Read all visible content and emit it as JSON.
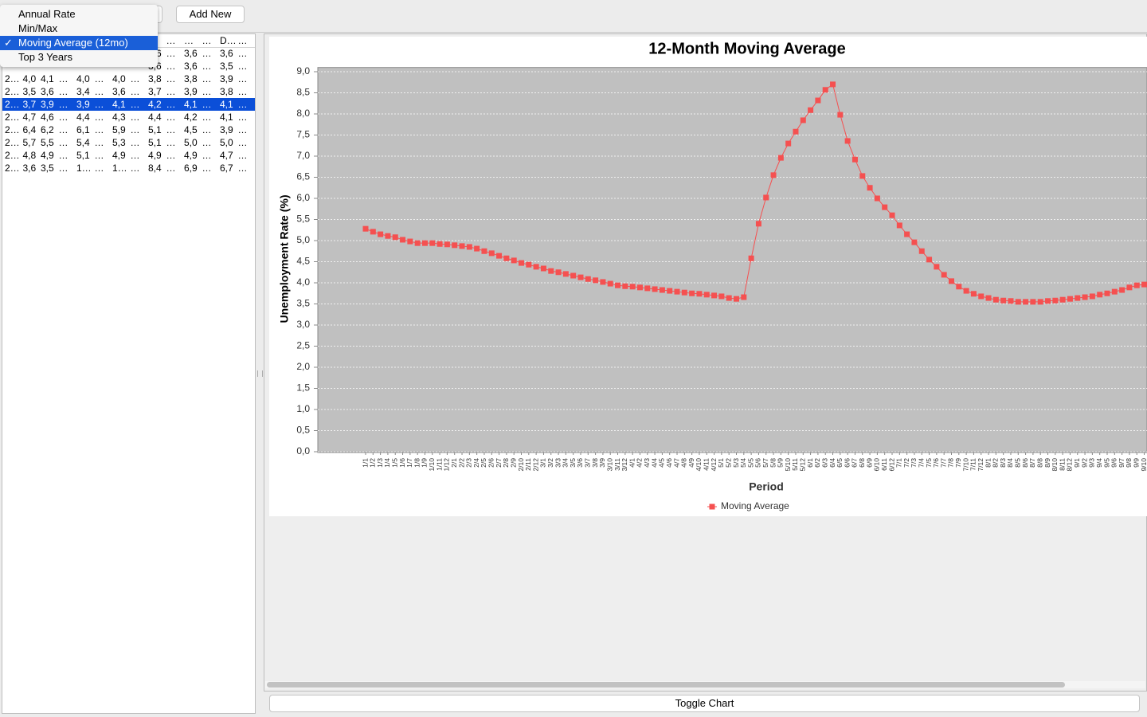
{
  "toolbar": {
    "menu_items": [
      {
        "label": "Annual Rate",
        "checked": false
      },
      {
        "label": "Min/Max",
        "checked": false
      },
      {
        "label": "Moving Average (12mo)",
        "checked": true
      },
      {
        "label": "Top 3 Years",
        "checked": false
      }
    ],
    "add_button": "Add New"
  },
  "table": {
    "header": [
      "…",
      "…",
      "…",
      "D…",
      "…"
    ],
    "partial_rows": [
      [
        "3,6",
        "…",
        "3,6",
        "…",
        "3,6",
        "…"
      ],
      [
        "3,6",
        "…",
        "3,6",
        "…",
        "3,5",
        "…"
      ]
    ],
    "rows": [
      {
        "cells": [
          "2…",
          "4,0",
          "4,1",
          "…",
          "4,0",
          "…",
          "4,0",
          "…",
          "3,8",
          "…",
          "3,8",
          "…",
          "3,9",
          "…"
        ],
        "selected": false
      },
      {
        "cells": [
          "2…",
          "3,5",
          "3,6",
          "…",
          "3,4",
          "…",
          "3,6",
          "…",
          "3,7",
          "…",
          "3,9",
          "…",
          "3,8",
          "…"
        ],
        "selected": false
      },
      {
        "cells": [
          "2…",
          "3,7",
          "3,9",
          "…",
          "3,9",
          "…",
          "4,1",
          "…",
          "4,2",
          "…",
          "4,1",
          "…",
          "4,1",
          "…"
        ],
        "selected": true
      },
      {
        "cells": [
          "2…",
          "4,7",
          "4,6",
          "…",
          "4,4",
          "…",
          "4,3",
          "…",
          "4,4",
          "…",
          "4,2",
          "…",
          "4,1",
          "…"
        ],
        "selected": false
      },
      {
        "cells": [
          "2…",
          "6,4",
          "6,2",
          "…",
          "6,1",
          "…",
          "5,9",
          "…",
          "5,1",
          "…",
          "4,5",
          "…",
          "3,9",
          "…"
        ],
        "selected": false
      },
      {
        "cells": [
          "2…",
          "5,7",
          "5,5",
          "…",
          "5,4",
          "…",
          "5,3",
          "…",
          "5,1",
          "…",
          "5,0",
          "…",
          "5,0",
          "…"
        ],
        "selected": false
      },
      {
        "cells": [
          "2…",
          "4,8",
          "4,9",
          "…",
          "5,1",
          "…",
          "4,9",
          "…",
          "4,9",
          "…",
          "4,9",
          "…",
          "4,7",
          "…"
        ],
        "selected": false
      },
      {
        "cells": [
          "2…",
          "3,6",
          "3,5",
          "…",
          "1…",
          "…",
          "1…",
          "…",
          "8,4",
          "…",
          "6,9",
          "…",
          "6,7",
          "…"
        ],
        "selected": false
      }
    ]
  },
  "chart_data": {
    "type": "line",
    "title": "12-Month Moving Average",
    "x_label": "Period",
    "y_label": "Unemployment Rate (%)",
    "categories": [
      "1/1",
      "1/2",
      "1/3",
      "1/4",
      "1/5",
      "1/6",
      "1/7",
      "1/8",
      "1/9",
      "1/10",
      "1/11",
      "1/12",
      "2/1",
      "2/2",
      "2/3",
      "2/4",
      "2/5",
      "2/6",
      "2/7",
      "2/8",
      "2/9",
      "2/10",
      "2/11",
      "2/12",
      "3/1",
      "3/2",
      "3/3",
      "3/4",
      "3/5",
      "3/6",
      "3/7",
      "3/8",
      "3/9",
      "3/10",
      "3/11",
      "3/12",
      "4/1",
      "4/2",
      "4/3",
      "4/4",
      "4/5",
      "4/6",
      "4/7",
      "4/8",
      "4/9",
      "4/10",
      "4/11",
      "4/12",
      "5/1",
      "5/2",
      "5/3",
      "5/4",
      "5/5",
      "5/6",
      "5/7",
      "5/8",
      "5/9",
      "5/10",
      "5/11",
      "5/12",
      "6/1",
      "6/2",
      "6/3",
      "6/4",
      "6/5",
      "6/6",
      "6/7",
      "6/8",
      "6/9",
      "6/10",
      "6/11",
      "6/12",
      "7/1",
      "7/2",
      "7/3",
      "7/4",
      "7/5",
      "7/6",
      "7/7",
      "7/8",
      "7/9",
      "7/10",
      "7/11",
      "7/12",
      "8/1",
      "8/2",
      "8/3",
      "8/4",
      "8/5",
      "8/6",
      "8/7",
      "8/8",
      "8/9",
      "8/10",
      "8/11",
      "8/12",
      "9/1",
      "9/2",
      "9/3",
      "9/4",
      "9/5",
      "9/6",
      "9/7",
      "9/8",
      "9/9",
      "9/10"
    ],
    "series": [
      {
        "name": "Moving Average",
        "color": "#f55050",
        "values": [
          5.28,
          5.21,
          5.15,
          5.11,
          5.08,
          5.02,
          4.98,
          4.94,
          4.94,
          4.94,
          4.92,
          4.91,
          4.89,
          4.87,
          4.85,
          4.81,
          4.75,
          4.7,
          4.64,
          4.58,
          4.53,
          4.47,
          4.43,
          4.38,
          4.34,
          4.28,
          4.25,
          4.21,
          4.17,
          4.13,
          4.09,
          4.06,
          4.02,
          3.98,
          3.94,
          3.92,
          3.91,
          3.89,
          3.87,
          3.85,
          3.83,
          3.81,
          3.79,
          3.77,
          3.75,
          3.74,
          3.72,
          3.7,
          3.68,
          3.64,
          3.62,
          3.66,
          4.58,
          5.4,
          6.02,
          6.55,
          6.96,
          7.3,
          7.58,
          7.85,
          8.09,
          8.32,
          8.57,
          8.7,
          7.98,
          7.36,
          6.92,
          6.53,
          6.25,
          6.0,
          5.79,
          5.6,
          5.36,
          5.15,
          4.96,
          4.75,
          4.55,
          4.38,
          4.19,
          4.04,
          3.91,
          3.81,
          3.74,
          3.68,
          3.64,
          3.6,
          3.58,
          3.57,
          3.55,
          3.55,
          3.55,
          3.55,
          3.57,
          3.58,
          3.6,
          3.62,
          3.64,
          3.66,
          3.68,
          3.72,
          3.75,
          3.79,
          3.83,
          3.89,
          3.94,
          3.96
        ]
      }
    ],
    "ylim": [
      0,
      9.1
    ],
    "yticks": [
      {
        "value": 0,
        "label": "0,0"
      },
      {
        "value": 0.5,
        "label": "0,5"
      },
      {
        "value": 1,
        "label": "1,0"
      },
      {
        "value": 1.5,
        "label": "1,5"
      },
      {
        "value": 2,
        "label": "2,0"
      },
      {
        "value": 2.5,
        "label": "2,5"
      },
      {
        "value": 3,
        "label": "3,0"
      },
      {
        "value": 3.5,
        "label": "3,5"
      },
      {
        "value": 4,
        "label": "4,0"
      },
      {
        "value": 4.5,
        "label": "4,5"
      },
      {
        "value": 5,
        "label": "5,0"
      },
      {
        "value": 5.5,
        "label": "5,5"
      },
      {
        "value": 6,
        "label": "6,0"
      },
      {
        "value": 6.5,
        "label": "6,5"
      },
      {
        "value": 7,
        "label": "7,0"
      },
      {
        "value": 7.5,
        "label": "7,5"
      },
      {
        "value": 8,
        "label": "8,0"
      },
      {
        "value": 8.5,
        "label": "8,5"
      },
      {
        "value": 9,
        "label": "9,0"
      }
    ],
    "grid": true,
    "legend": "bottom"
  },
  "toggle_button": "Toggle Chart"
}
